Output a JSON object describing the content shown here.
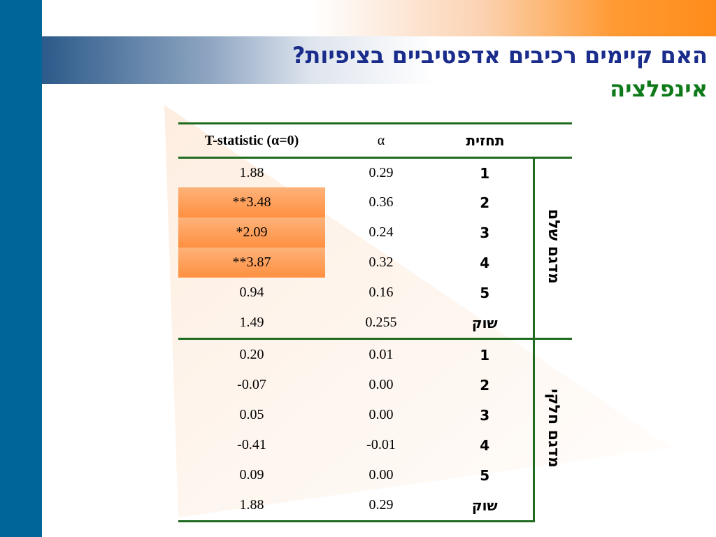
{
  "title": {
    "line1": "האם קיימים רכיבים אדפטיביים בציפיות?",
    "line2": "אינפלציה"
  },
  "table": {
    "headers": {
      "t_stat": "T-statistic  (α=0)",
      "alpha": "α",
      "prediction": "תחזית"
    },
    "groups": [
      {
        "label": "מדגם שלם",
        "rows": [
          {
            "prediction": "1",
            "alpha": "0.29",
            "t_stat": "1.88",
            "highlight": false
          },
          {
            "prediction": "2",
            "alpha": "0.36",
            "t_stat": "**3.48",
            "highlight": true
          },
          {
            "prediction": "3",
            "alpha": "0.24",
            "t_stat": "*2.09",
            "highlight": true
          },
          {
            "prediction": "4",
            "alpha": "0.32",
            "t_stat": "**3.87",
            "highlight": true
          },
          {
            "prediction": "5",
            "alpha": "0.16",
            "t_stat": "0.94",
            "highlight": false
          },
          {
            "prediction": "שוק",
            "alpha": "0.255",
            "t_stat": "1.49",
            "highlight": false
          }
        ]
      },
      {
        "label": "מדגם חלקי",
        "rows": [
          {
            "prediction": "1",
            "alpha": "0.01",
            "t_stat": "0.20",
            "highlight": false
          },
          {
            "prediction": "2",
            "alpha": "0.00",
            "t_stat": "-0.07",
            "highlight": false
          },
          {
            "prediction": "3",
            "alpha": "0.00",
            "t_stat": "0.05",
            "highlight": false
          },
          {
            "prediction": "4",
            "alpha": "-0.01",
            "t_stat": "-0.41",
            "highlight": false
          },
          {
            "prediction": "5",
            "alpha": "0.00",
            "t_stat": "0.09",
            "highlight": false
          },
          {
            "prediction": "שוק",
            "alpha": "0.29",
            "t_stat": "1.88",
            "highlight": false
          }
        ]
      }
    ]
  },
  "colors": {
    "left_bar": "#006699",
    "title_primary": "#1a2d8c",
    "title_secondary": "#0f7a1a",
    "table_rule": "#1f6b1f",
    "highlight": "#ff9040"
  }
}
